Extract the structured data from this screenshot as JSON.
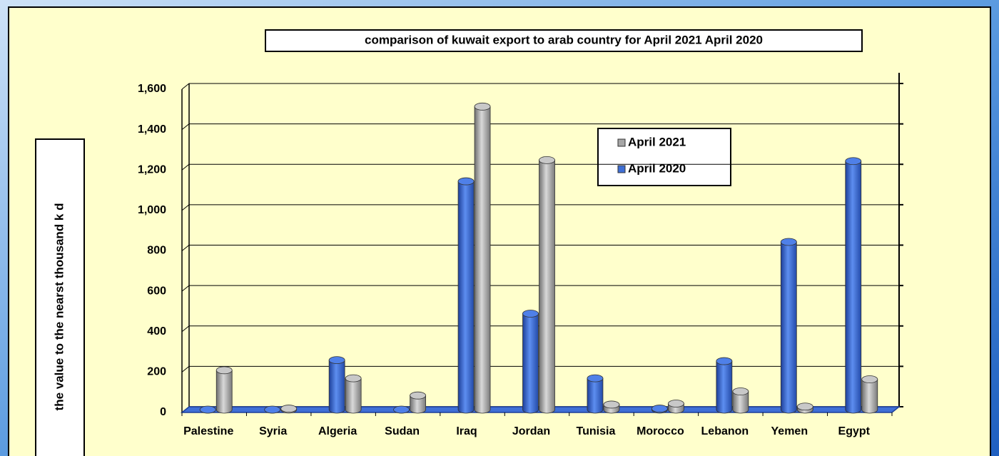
{
  "chart_data": {
    "type": "bar",
    "title": "comparison of kuwait export to arab country for April 2021 April 2020",
    "y_label": "the value to the nearst thousand k d",
    "categories": [
      "Palestine",
      "Syria",
      "Algeria",
      "Sudan",
      "Iraq",
      "Jordan",
      "Tunisia",
      "Morocco",
      "Lebanon",
      "Yemen",
      "Egypt"
    ],
    "series": [
      {
        "name": "April 2021",
        "color": "#a6a6a6",
        "values": [
          195,
          5,
          155,
          70,
          1500,
          1235,
          25,
          30,
          90,
          15,
          150
        ]
      },
      {
        "name": "April 2020",
        "color": "#3f6fd6",
        "values": [
          0,
          0,
          245,
          0,
          1130,
          475,
          155,
          5,
          240,
          830,
          1230
        ]
      }
    ],
    "ylim": [
      0,
      1600
    ],
    "yticks": [
      0,
      {
        "value": 200,
        "label": "200"
      },
      400,
      600,
      800,
      {
        "value": 1000,
        "label": "1,000"
      },
      {
        "value": 1200,
        "label": "1,200"
      },
      {
        "value": 1400,
        "label": "1,400"
      },
      {
        "value": 1600,
        "label": "1,600"
      }
    ],
    "grid": true
  }
}
